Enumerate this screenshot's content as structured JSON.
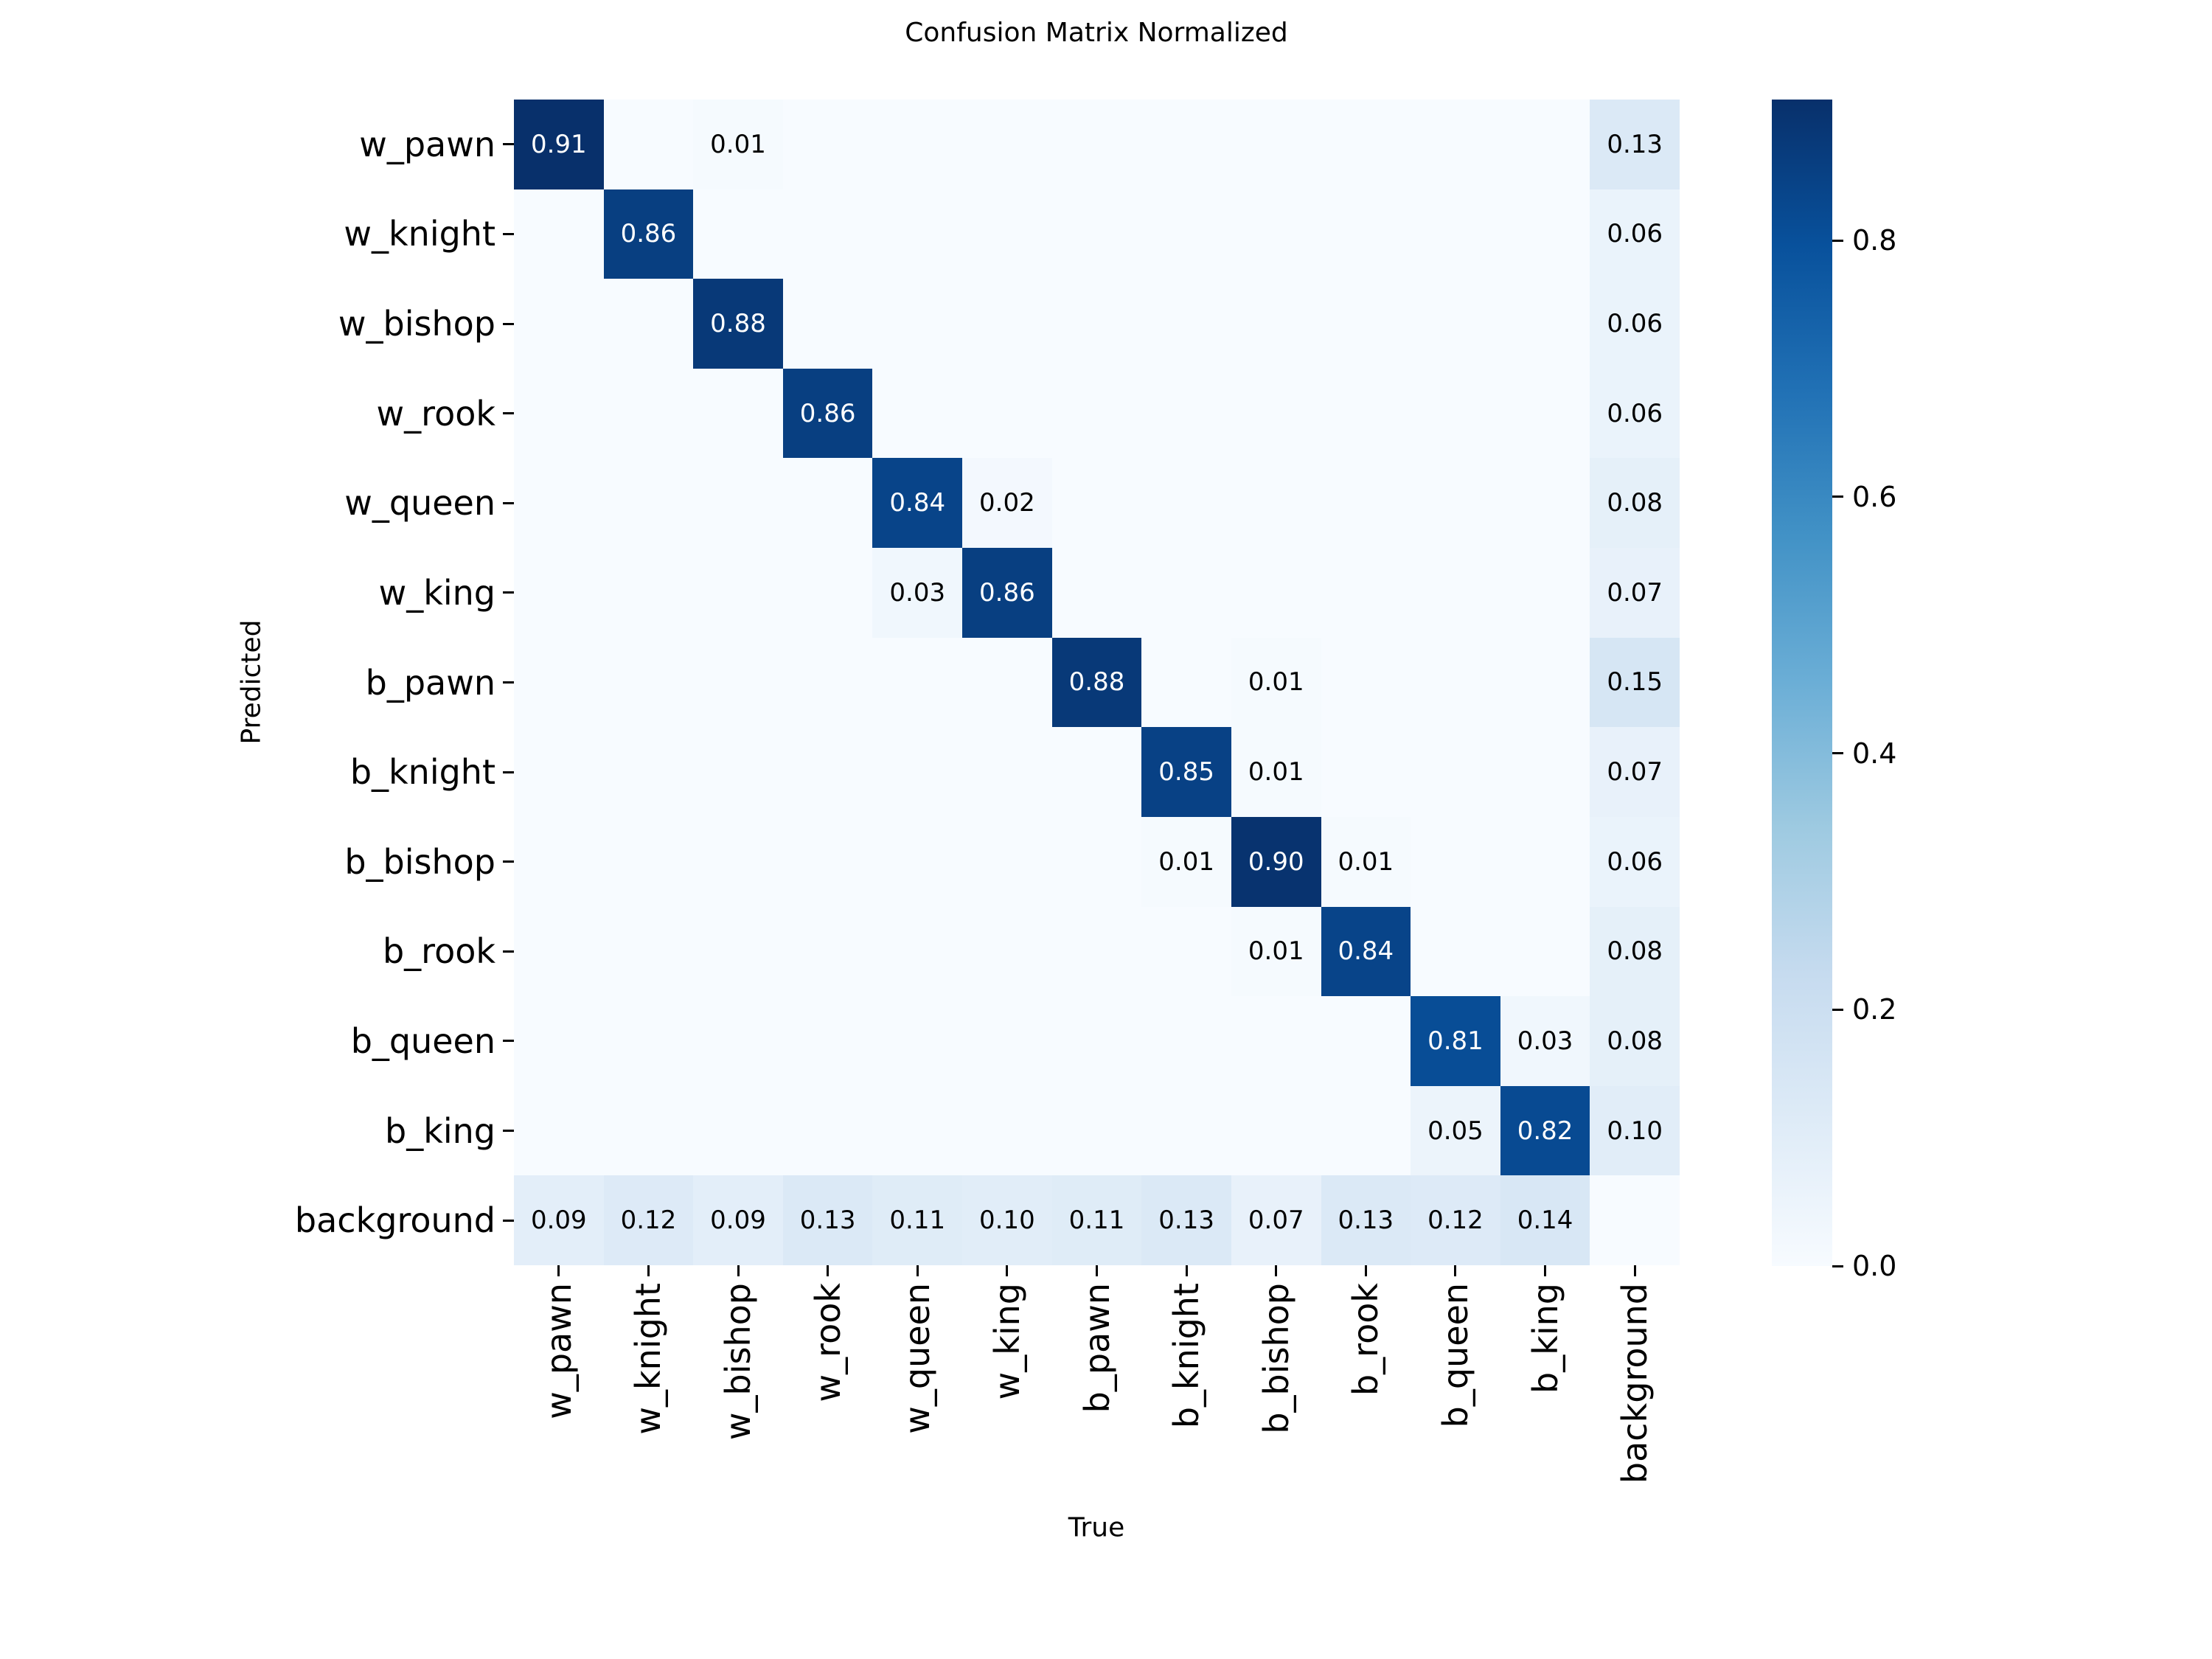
{
  "chart_data": {
    "type": "heatmap",
    "title": "Confusion Matrix Normalized",
    "xlabel": "True",
    "ylabel": "Predicted",
    "x_categories": [
      "w_pawn",
      "w_knight",
      "w_bishop",
      "w_rook",
      "w_queen",
      "w_king",
      "b_pawn",
      "b_knight",
      "b_bishop",
      "b_rook",
      "b_queen",
      "b_king",
      "background"
    ],
    "y_categories": [
      "w_pawn",
      "w_knight",
      "w_bishop",
      "w_rook",
      "w_queen",
      "w_king",
      "b_pawn",
      "b_knight",
      "b_bishop",
      "b_rook",
      "b_queen",
      "b_king",
      "background"
    ],
    "matrix": [
      [
        0.91,
        0,
        0.01,
        0,
        0,
        0,
        0,
        0,
        0,
        0,
        0,
        0,
        0.13
      ],
      [
        0,
        0.86,
        0,
        0,
        0,
        0,
        0,
        0,
        0,
        0,
        0,
        0,
        0.06
      ],
      [
        0,
        0,
        0.88,
        0,
        0,
        0,
        0,
        0,
        0,
        0,
        0,
        0,
        0.06
      ],
      [
        0,
        0,
        0,
        0.86,
        0,
        0,
        0,
        0,
        0,
        0,
        0,
        0,
        0.06
      ],
      [
        0,
        0,
        0,
        0,
        0.84,
        0.02,
        0,
        0,
        0,
        0,
        0,
        0,
        0.08
      ],
      [
        0,
        0,
        0,
        0,
        0.03,
        0.86,
        0,
        0,
        0,
        0,
        0,
        0,
        0.07
      ],
      [
        0,
        0,
        0,
        0,
        0,
        0,
        0.88,
        0,
        0.01,
        0,
        0,
        0,
        0.15
      ],
      [
        0,
        0,
        0,
        0,
        0,
        0,
        0,
        0.85,
        0.01,
        0,
        0,
        0,
        0.07
      ],
      [
        0,
        0,
        0,
        0,
        0,
        0,
        0,
        0.01,
        0.9,
        0.01,
        0,
        0,
        0.06
      ],
      [
        0,
        0,
        0,
        0,
        0,
        0,
        0,
        0,
        0.01,
        0.84,
        0,
        0,
        0.08
      ],
      [
        0,
        0,
        0,
        0,
        0,
        0,
        0,
        0,
        0,
        0,
        0.81,
        0.03,
        0.08
      ],
      [
        0,
        0,
        0,
        0,
        0,
        0,
        0,
        0,
        0,
        0,
        0.05,
        0.82,
        0.1
      ],
      [
        0.09,
        0.12,
        0.09,
        0.13,
        0.11,
        0.1,
        0.11,
        0.13,
        0.07,
        0.13,
        0.12,
        0.14,
        0
      ]
    ],
    "vmin": 0,
    "vmax": 0.91,
    "grid": false,
    "legend_position": "colorbar-right",
    "colormap": "Blues",
    "colormap_stops": [
      "#f7fbff",
      "#deebf7",
      "#c6dbef",
      "#9ecae1",
      "#6baed6",
      "#4292c6",
      "#2171b5",
      "#08519c",
      "#08306b"
    ],
    "colorbar_ticks": [
      "0.0",
      "0.2",
      "0.4",
      "0.6",
      "0.8"
    ],
    "annotation_text_light": "#ffffff",
    "annotation_text_dark": "#000000"
  }
}
